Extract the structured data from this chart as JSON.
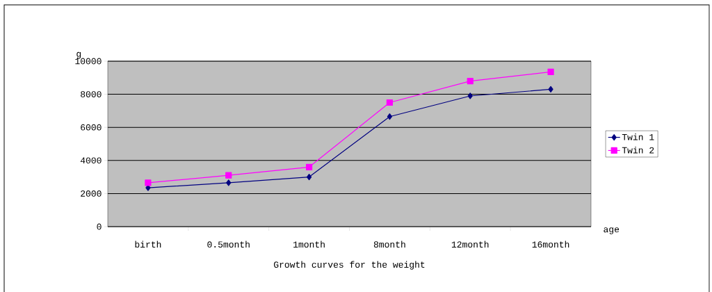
{
  "chart_data": {
    "type": "line",
    "title": "Growth curves for the weight",
    "xlabel": "age",
    "ylabel": "g",
    "categories": [
      "birth",
      "0.5month",
      "1month",
      "8month",
      "12month",
      "16month"
    ],
    "series": [
      {
        "name": "Twin 1",
        "color": "#000080",
        "marker": "diamond",
        "values": [
          2350,
          2650,
          3000,
          6650,
          7900,
          8300
        ]
      },
      {
        "name": "Twin 2",
        "color": "#ff00ff",
        "marker": "square",
        "values": [
          2650,
          3100,
          3600,
          7500,
          8800,
          9350
        ]
      }
    ],
    "ylim": [
      0,
      10000
    ],
    "yticks": [
      0,
      2000,
      4000,
      6000,
      8000,
      10000
    ],
    "grid": "y",
    "legend": "right"
  }
}
